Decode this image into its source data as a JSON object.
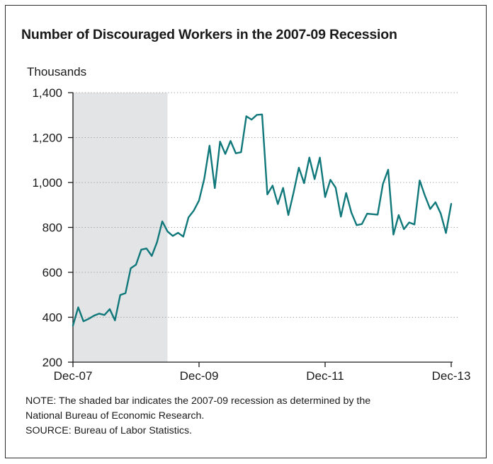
{
  "chart_data": {
    "type": "line",
    "title": "Number of Discouraged Workers in the 2007-09 Recession",
    "ylabel": "Thousands",
    "xlabel": "",
    "ylim": [
      200,
      1400
    ],
    "yticks": [
      200,
      400,
      600,
      800,
      1000,
      1200,
      1400
    ],
    "ytick_labels": [
      "200",
      "400",
      "600",
      "800",
      "1,000",
      "1,200",
      "1,400"
    ],
    "xtick_labels": [
      "Dec-07",
      "Dec-09",
      "Dec-11",
      "Dec-13"
    ],
    "x_start": "Dec-07",
    "x_end": "Dec-13",
    "shaded_region": {
      "start": "Dec-07",
      "end": "Jun-09",
      "color": "#e3e4e6"
    },
    "grid": "horizontal dotted",
    "series": [
      {
        "color": "#10787a",
        "x": [
          "Dec-07",
          "Jan-08",
          "Feb-08",
          "Mar-08",
          "Apr-08",
          "May-08",
          "Jun-08",
          "Jul-08",
          "Aug-08",
          "Sep-08",
          "Oct-08",
          "Nov-08",
          "Dec-08",
          "Jan-09",
          "Feb-09",
          "Mar-09",
          "Apr-09",
          "May-09",
          "Jun-09",
          "Jul-09",
          "Aug-09",
          "Sep-09",
          "Oct-09",
          "Nov-09",
          "Dec-09",
          "Jan-10",
          "Feb-10",
          "Mar-10",
          "Apr-10",
          "May-10",
          "Jun-10",
          "Jul-10",
          "Aug-10",
          "Sep-10",
          "Oct-10",
          "Nov-10",
          "Dec-10",
          "Jan-11",
          "Feb-11",
          "Mar-11",
          "Apr-11",
          "May-11",
          "Jun-11",
          "Jul-11",
          "Aug-11",
          "Sep-11",
          "Oct-11",
          "Nov-11",
          "Dec-11",
          "Jan-12",
          "Feb-12",
          "Mar-12",
          "Apr-12",
          "May-12",
          "Jun-12",
          "Jul-12",
          "Aug-12",
          "Sep-12",
          "Oct-12",
          "Nov-12",
          "Dec-12",
          "Jan-13",
          "Feb-13",
          "Mar-13",
          "Apr-13",
          "May-13",
          "Jun-13",
          "Jul-13",
          "Aug-13",
          "Sep-13",
          "Oct-13",
          "Nov-13",
          "Dec-13"
        ],
        "values": [
          363,
          444,
          382,
          393,
          407,
          416,
          410,
          436,
          386,
          499,
          507,
          618,
          634,
          701,
          706,
          673,
          734,
          827,
          782,
          762,
          776,
          759,
          845,
          875,
          920,
          1017,
          1164,
          975,
          1182,
          1127,
          1185,
          1130,
          1135,
          1295,
          1280,
          1301,
          1303,
          947,
          986,
          904,
          976,
          855,
          956,
          1066,
          997,
          1111,
          1015,
          1111,
          935,
          1012,
          977,
          848,
          953,
          866,
          810,
          815,
          861,
          859,
          857,
          993,
          1057,
          768,
          855,
          792,
          822,
          813,
          1009,
          941,
          882,
          912,
          862,
          775,
          905
        ]
      }
    ]
  },
  "notes": {
    "note_line1": "NOTE: The shaded bar indicates the 2007-09 recession as determined by the",
    "note_line2": "National Bureau of Economic Research.",
    "source": "SOURCE: Bureau of Labor Statistics."
  }
}
